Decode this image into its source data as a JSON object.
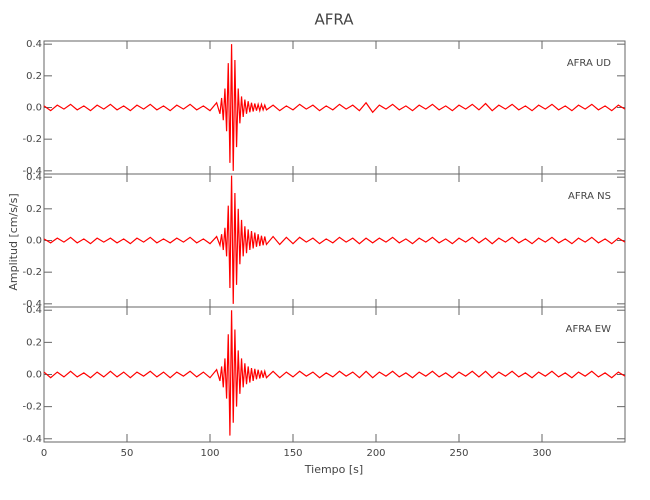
{
  "chart_data": [
    {
      "type": "line",
      "title": "AFRA",
      "annotation": "AFRA   UD",
      "color": "#ff0000",
      "xlim": [
        0,
        350
      ],
      "ylim": [
        -0.42,
        0.42
      ],
      "yticks": [
        -0.4,
        -0.2,
        {
          "value": 0,
          "label": "0.0"
        },
        0.2,
        0.4
      ],
      "x": [
        0,
        4,
        8,
        12,
        16,
        20,
        24,
        28,
        32,
        36,
        40,
        44,
        48,
        52,
        56,
        60,
        64,
        68,
        72,
        76,
        80,
        84,
        88,
        92,
        96,
        100,
        104,
        106,
        107,
        108,
        109,
        110,
        111,
        112,
        113,
        114,
        115,
        116,
        117,
        118,
        119,
        120,
        121,
        122,
        123,
        124,
        125,
        126,
        127,
        128,
        129,
        130,
        131,
        132,
        133,
        134,
        138,
        142,
        146,
        150,
        154,
        158,
        162,
        166,
        170,
        174,
        178,
        182,
        186,
        190,
        194,
        198,
        202,
        206,
        210,
        214,
        218,
        222,
        226,
        230,
        234,
        238,
        242,
        246,
        250,
        254,
        258,
        262,
        266,
        270,
        274,
        278,
        282,
        286,
        290,
        294,
        298,
        302,
        306,
        310,
        314,
        318,
        322,
        326,
        330,
        334,
        338,
        342,
        346,
        350
      ],
      "values": [
        0.01,
        -0.02,
        0.015,
        -0.01,
        0.02,
        -0.015,
        0.01,
        -0.02,
        0.015,
        -0.01,
        0.02,
        -0.015,
        0.01,
        -0.02,
        0.015,
        -0.01,
        0.02,
        -0.015,
        0.01,
        -0.02,
        0.015,
        -0.01,
        0.02,
        -0.015,
        0.01,
        -0.02,
        0.03,
        -0.04,
        0.06,
        -0.08,
        0.12,
        -0.15,
        0.28,
        -0.35,
        0.4,
        -0.4,
        0.3,
        -0.25,
        0.12,
        -0.1,
        0.07,
        -0.06,
        0.05,
        -0.04,
        0.04,
        -0.03,
        0.03,
        -0.025,
        0.025,
        -0.02,
        0.02,
        -0.02,
        0.02,
        -0.015,
        0.015,
        -0.015,
        0.015,
        -0.02,
        0.01,
        -0.015,
        0.02,
        -0.01,
        0.015,
        -0.02,
        0.01,
        -0.015,
        0.02,
        -0.01,
        0.015,
        -0.02,
        0.03,
        -0.03,
        0.015,
        -0.01,
        0.02,
        -0.015,
        0.01,
        -0.02,
        0.015,
        -0.01,
        0.02,
        -0.015,
        0.01,
        -0.02,
        0.015,
        -0.01,
        0.02,
        -0.015,
        0.025,
        -0.02,
        0.015,
        -0.01,
        0.02,
        -0.015,
        0.01,
        -0.02,
        0.015,
        -0.01,
        0.02,
        -0.015,
        0.01,
        -0.02,
        0.015,
        -0.01,
        0.02,
        -0.015,
        0.01,
        -0.02,
        0.015,
        -0.01
      ]
    },
    {
      "type": "line",
      "ylabel": "Amplitud [cm/s/s]",
      "annotation": "AFRA   NS",
      "color": "#ff0000",
      "xlim": [
        0,
        350
      ],
      "ylim": [
        -0.42,
        0.42
      ],
      "yticks": [
        -0.4,
        -0.2,
        {
          "value": 0,
          "label": "0.0"
        },
        0.2,
        0.4
      ],
      "x": [
        0,
        4,
        8,
        12,
        16,
        20,
        24,
        28,
        32,
        36,
        40,
        44,
        48,
        52,
        56,
        60,
        64,
        68,
        72,
        76,
        80,
        84,
        88,
        92,
        96,
        100,
        104,
        106,
        107,
        108,
        109,
        110,
        111,
        112,
        113,
        114,
        115,
        116,
        117,
        118,
        119,
        120,
        121,
        122,
        123,
        124,
        125,
        126,
        127,
        128,
        129,
        130,
        131,
        132,
        133,
        134,
        138,
        142,
        146,
        150,
        154,
        158,
        162,
        166,
        170,
        174,
        178,
        182,
        186,
        190,
        194,
        198,
        202,
        206,
        210,
        214,
        218,
        222,
        226,
        230,
        234,
        238,
        242,
        246,
        250,
        254,
        258,
        262,
        266,
        270,
        274,
        278,
        282,
        286,
        290,
        294,
        298,
        302,
        306,
        310,
        314,
        318,
        322,
        326,
        330,
        334,
        338,
        342,
        346,
        350
      ],
      "values": [
        0.01,
        -0.015,
        0.015,
        -0.01,
        0.02,
        -0.015,
        0.01,
        -0.02,
        0.015,
        -0.01,
        0.015,
        -0.015,
        0.01,
        -0.02,
        0.015,
        -0.01,
        0.02,
        -0.015,
        0.01,
        -0.015,
        0.015,
        -0.01,
        0.02,
        -0.015,
        0.01,
        -0.02,
        0.025,
        -0.03,
        0.04,
        -0.06,
        0.08,
        -0.1,
        0.22,
        -0.3,
        0.41,
        -0.4,
        0.3,
        -0.28,
        0.2,
        -0.15,
        0.13,
        -0.1,
        0.09,
        -0.08,
        0.07,
        -0.06,
        0.06,
        -0.05,
        0.05,
        -0.04,
        0.04,
        -0.035,
        0.03,
        -0.03,
        0.025,
        -0.025,
        0.025,
        -0.025,
        0.02,
        -0.02,
        0.02,
        -0.01,
        0.015,
        -0.02,
        0.01,
        -0.015,
        0.02,
        -0.01,
        0.015,
        -0.02,
        0.015,
        -0.015,
        0.015,
        -0.01,
        0.02,
        -0.015,
        0.01,
        -0.02,
        0.015,
        -0.01,
        0.02,
        -0.015,
        0.01,
        -0.02,
        0.015,
        -0.01,
        0.02,
        -0.015,
        0.015,
        -0.02,
        0.015,
        -0.01,
        0.02,
        -0.015,
        0.01,
        -0.02,
        0.015,
        -0.01,
        0.02,
        -0.015,
        0.01,
        -0.02,
        0.015,
        -0.01,
        0.02,
        -0.015,
        0.01,
        -0.02,
        0.015,
        -0.01
      ]
    },
    {
      "type": "line",
      "xlabel": "Tiempo [s]",
      "annotation": "AFRA   EW",
      "color": "#ff0000",
      "xlim": [
        0,
        350
      ],
      "ylim": [
        -0.42,
        0.42
      ],
      "xticks": [
        0,
        50,
        100,
        150,
        200,
        250,
        300
      ],
      "yticks": [
        -0.4,
        -0.2,
        {
          "value": 0,
          "label": "0.0"
        },
        0.2,
        0.4
      ],
      "x": [
        0,
        4,
        8,
        12,
        16,
        20,
        24,
        28,
        32,
        36,
        40,
        44,
        48,
        52,
        56,
        60,
        64,
        68,
        72,
        76,
        80,
        84,
        88,
        92,
        96,
        100,
        104,
        106,
        107,
        108,
        109,
        110,
        111,
        112,
        113,
        114,
        115,
        116,
        117,
        118,
        119,
        120,
        121,
        122,
        123,
        124,
        125,
        126,
        127,
        128,
        129,
        130,
        131,
        132,
        133,
        134,
        138,
        142,
        146,
        150,
        154,
        158,
        162,
        166,
        170,
        174,
        178,
        182,
        186,
        190,
        194,
        198,
        202,
        206,
        210,
        214,
        218,
        222,
        226,
        230,
        234,
        238,
        242,
        246,
        250,
        254,
        258,
        262,
        266,
        270,
        274,
        278,
        282,
        286,
        290,
        294,
        298,
        302,
        306,
        310,
        314,
        318,
        322,
        326,
        330,
        334,
        338,
        342,
        346,
        350
      ],
      "values": [
        0.015,
        -0.02,
        0.015,
        -0.015,
        0.02,
        -0.015,
        0.01,
        -0.02,
        0.015,
        -0.015,
        0.02,
        -0.015,
        0.015,
        -0.02,
        0.015,
        -0.01,
        0.02,
        -0.015,
        0.015,
        -0.02,
        0.015,
        -0.01,
        0.02,
        -0.015,
        0.015,
        -0.02,
        0.03,
        -0.04,
        0.05,
        -0.08,
        0.1,
        -0.15,
        0.25,
        -0.38,
        0.4,
        -0.3,
        0.28,
        -0.2,
        0.15,
        -0.12,
        0.1,
        -0.08,
        0.07,
        -0.06,
        0.05,
        -0.05,
        0.04,
        -0.04,
        0.035,
        -0.03,
        0.03,
        -0.025,
        0.025,
        -0.02,
        0.02,
        -0.02,
        0.02,
        -0.02,
        0.015,
        -0.015,
        0.02,
        -0.01,
        0.015,
        -0.02,
        0.01,
        -0.015,
        0.02,
        -0.01,
        0.015,
        -0.02,
        0.02,
        -0.02,
        0.015,
        -0.01,
        0.02,
        -0.015,
        0.01,
        -0.02,
        0.015,
        -0.01,
        0.02,
        -0.015,
        0.01,
        -0.02,
        0.015,
        -0.01,
        0.02,
        -0.015,
        0.02,
        -0.02,
        0.015,
        -0.01,
        0.02,
        -0.015,
        0.01,
        -0.02,
        0.015,
        -0.01,
        0.02,
        -0.015,
        0.01,
        -0.02,
        0.015,
        -0.01,
        0.02,
        -0.015,
        0.01,
        -0.02,
        0.015,
        -0.01
      ]
    }
  ]
}
